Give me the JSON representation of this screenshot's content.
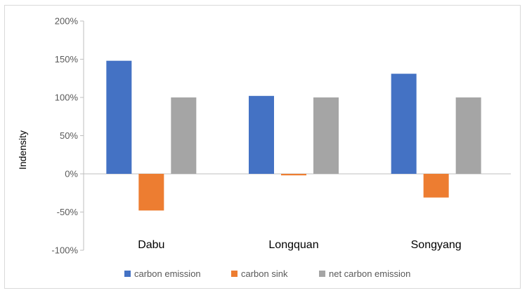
{
  "chart_data": {
    "type": "bar",
    "categories": [
      "Dabu",
      "Longquan",
      "Songyang"
    ],
    "series": [
      {
        "name": "carbon emission",
        "values": [
          148,
          102,
          131
        ],
        "color": "#4472C4"
      },
      {
        "name": "carbon sink",
        "values": [
          -48,
          -2,
          -31
        ],
        "color": "#ED7D31"
      },
      {
        "name": "net carbon emission",
        "values": [
          100,
          100,
          100
        ],
        "color": "#A5A5A5"
      }
    ],
    "title": "",
    "xlabel": "",
    "ylabel": "Indensity",
    "ylim": [
      -100,
      200
    ],
    "yticks": [
      200,
      150,
      100,
      50,
      0,
      -50,
      -100
    ],
    "ytick_labels": [
      "200%",
      "150%",
      "100%",
      "50%",
      "0%",
      "-50%",
      "-100%"
    ],
    "grid": false,
    "legend_position": "bottom",
    "unit": "%"
  }
}
